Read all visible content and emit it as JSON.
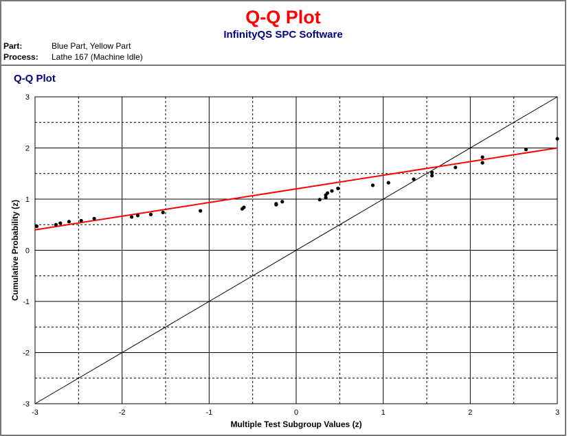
{
  "header": {
    "title": "Q-Q Plot",
    "subtitle": "InfinityQS SPC Software",
    "part_label": "Part:",
    "part_value": "Blue Part, Yellow Part",
    "process_label": "Process:",
    "process_value": "Lathe 167 (Machine Idle)"
  },
  "chart_data": {
    "type": "scatter",
    "title": "Q-Q Plot",
    "xlabel": "Multiple Test Subgroup Values (z)",
    "ylabel": "Cumulative Probability (z)",
    "xlim": [
      -3,
      3
    ],
    "ylim": [
      -3,
      3
    ],
    "xticks": [
      "-3",
      "-2",
      "-1",
      "0",
      "1",
      "2",
      "3"
    ],
    "yticks": [
      "3",
      "2",
      "1",
      "0",
      "-1",
      "-2",
      "-3"
    ],
    "grid": true,
    "colors": {
      "points": "#000000",
      "fit_line": "#ff0000",
      "reference_line": "#000000"
    },
    "fit_line": {
      "x": [
        -3,
        3
      ],
      "y": [
        0.4,
        2.0
      ]
    },
    "reference_line": {
      "x": [
        -3,
        3
      ],
      "y": [
        -3,
        3
      ]
    },
    "points": {
      "x": [
        -2.98,
        -2.76,
        -2.71,
        -2.61,
        -2.47,
        -2.32,
        -1.89,
        -1.82,
        -1.67,
        -1.53,
        -1.1,
        -0.62,
        -0.6,
        -0.23,
        -0.23,
        -0.16,
        0.27,
        0.34,
        0.34,
        0.36,
        0.41,
        0.48,
        0.88,
        1.06,
        1.35,
        1.56,
        1.56,
        1.83,
        2.14,
        2.14,
        2.64,
        3.0
      ],
      "y": [
        0.47,
        0.5,
        0.53,
        0.56,
        0.58,
        0.62,
        0.65,
        0.68,
        0.7,
        0.74,
        0.77,
        0.81,
        0.84,
        0.89,
        0.91,
        0.95,
        0.99,
        1.03,
        1.08,
        1.12,
        1.16,
        1.21,
        1.27,
        1.32,
        1.39,
        1.46,
        1.52,
        1.62,
        1.71,
        1.82,
        1.97,
        2.18
      ]
    }
  }
}
